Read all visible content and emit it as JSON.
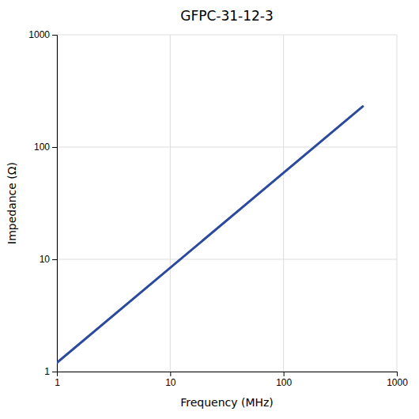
{
  "chart_data": {
    "type": "line",
    "title": "GFPC-31-12-3",
    "xlabel": "Frequency (MHz)",
    "ylabel": "Impedance (Ω)",
    "x": [
      1.0,
      500
    ],
    "values": [
      1.2,
      230
    ],
    "color": "#2B4A9E",
    "xlim": [
      1,
      1000
    ],
    "ylim": [
      1,
      1000
    ],
    "xticks": [
      1,
      10,
      100,
      1000
    ],
    "yticks": [
      1,
      10,
      100,
      1000
    ],
    "log": true,
    "grid": true
  }
}
